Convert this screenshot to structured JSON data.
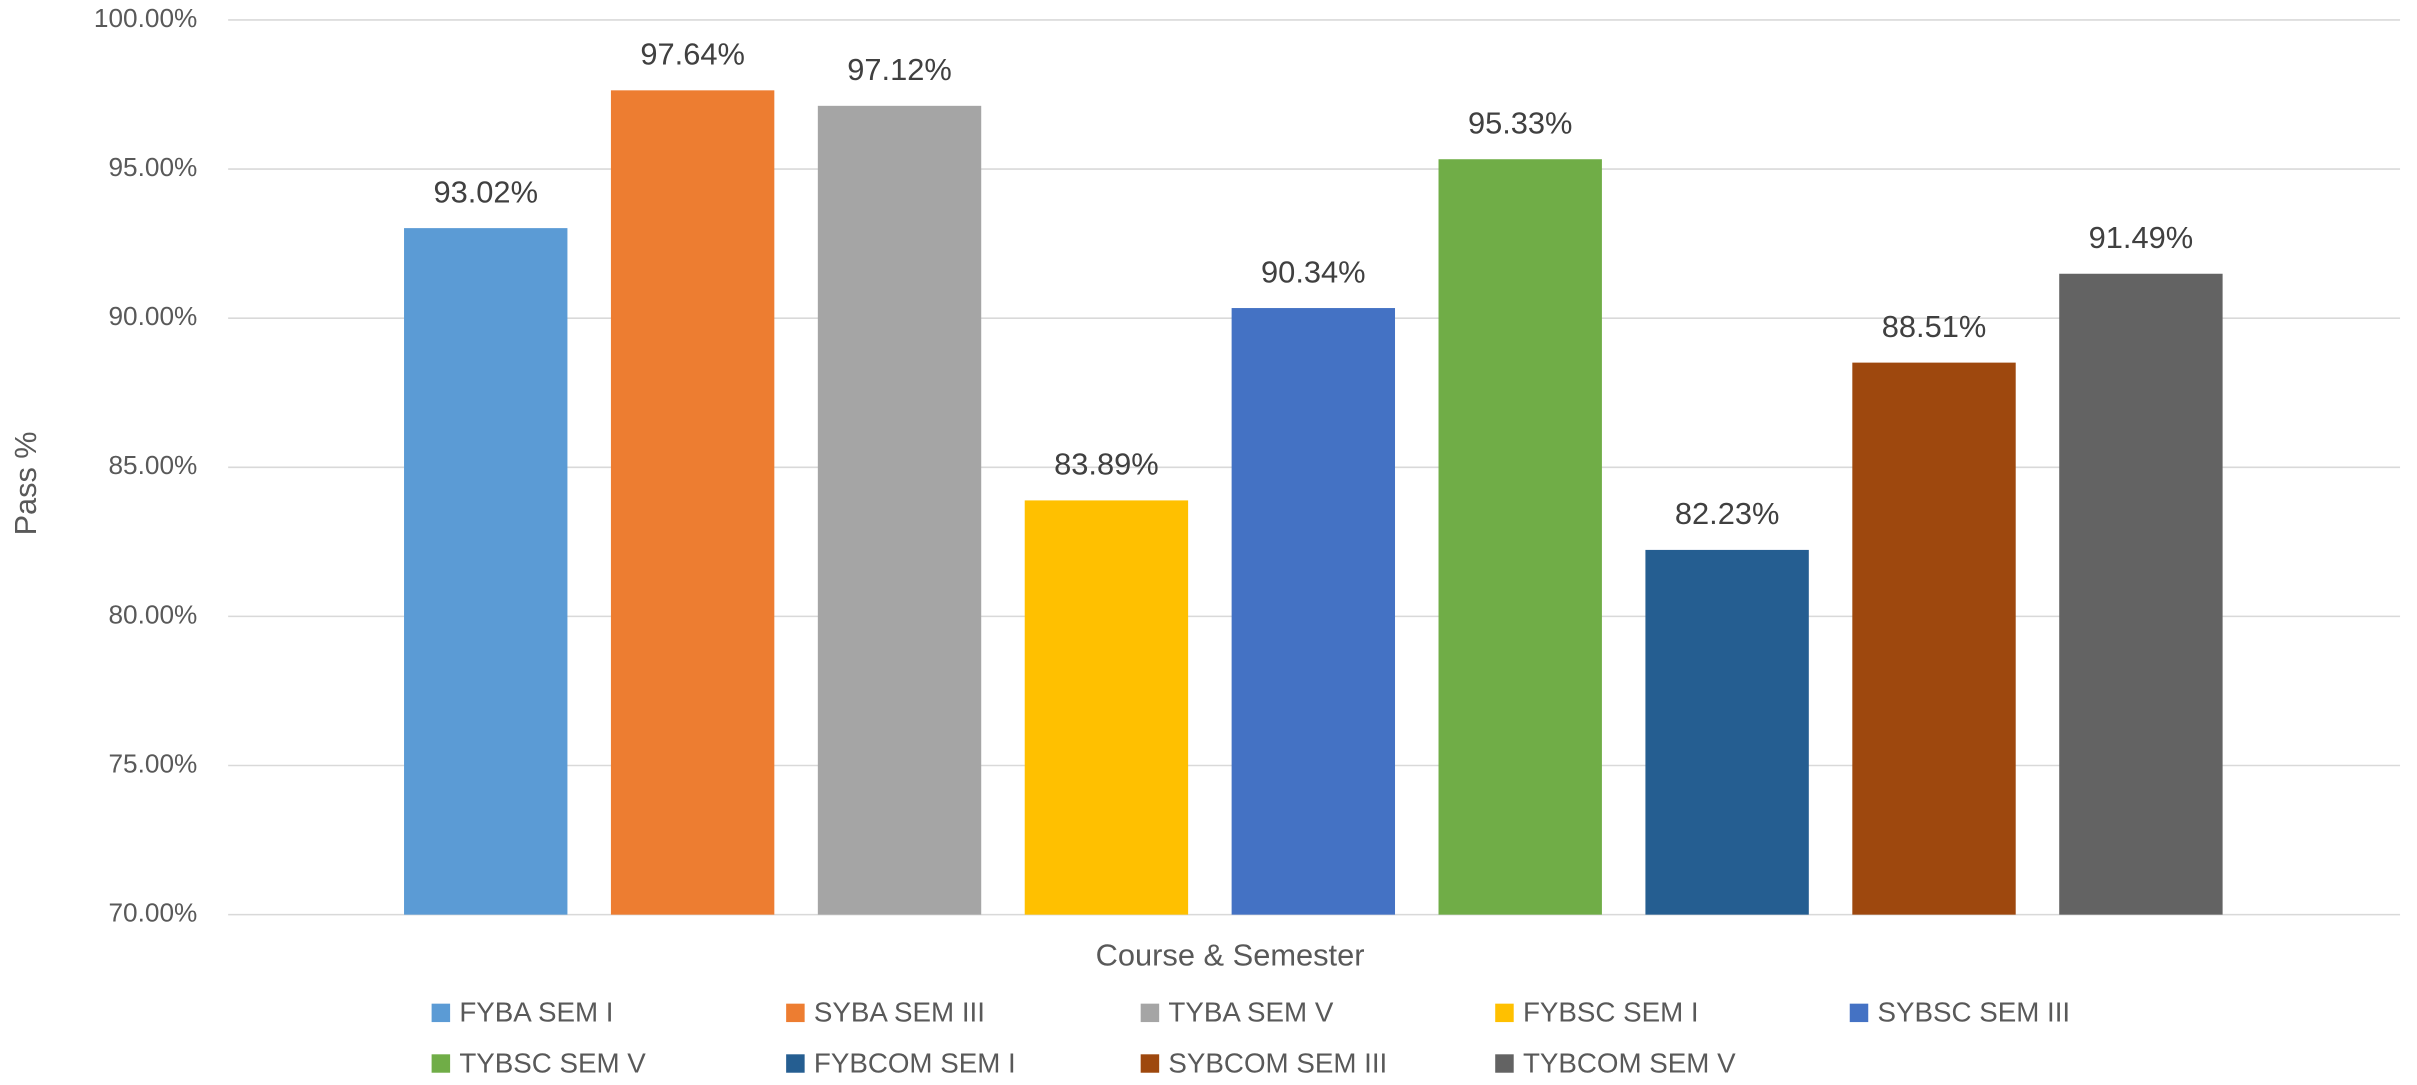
{
  "chart_data": {
    "type": "bar",
    "x_label": "Course & Semester",
    "y_label": "Pass %",
    "categories": [
      "FYBA SEM I",
      "SYBA SEM III",
      "TYBA SEM V",
      "FYBSC SEM I",
      "SYBSC SEM III",
      "TYBSC SEM V",
      "FYBCOM SEM I",
      "SYBCOM SEM III",
      "TYBCOM SEM V"
    ],
    "values": [
      93.02,
      97.64,
      97.12,
      83.89,
      90.34,
      95.33,
      82.23,
      88.51,
      91.49
    ],
    "value_labels": [
      "93.02%",
      "97.64%",
      "97.12%",
      "83.89%",
      "90.34%",
      "95.33%",
      "82.23%",
      "88.51%",
      "91.49%"
    ],
    "colors": [
      "#5b9bd5",
      "#ed7d31",
      "#a5a5a5",
      "#ffc000",
      "#4472c4",
      "#70ad47",
      "#255e91",
      "#9e480e",
      "#636363"
    ],
    "ylim": [
      70,
      100
    ],
    "yticks": [
      {
        "value": 70,
        "label": "70.00%"
      },
      {
        "value": 75,
        "label": "75.00%"
      },
      {
        "value": 80,
        "label": "80.00%"
      },
      {
        "value": 85,
        "label": "85.00%"
      },
      {
        "value": 90,
        "label": "90.00%"
      },
      {
        "value": 95,
        "label": "95.00%"
      },
      {
        "value": 100,
        "label": "100.00%"
      }
    ],
    "grid": true,
    "legend": "bottom"
  }
}
